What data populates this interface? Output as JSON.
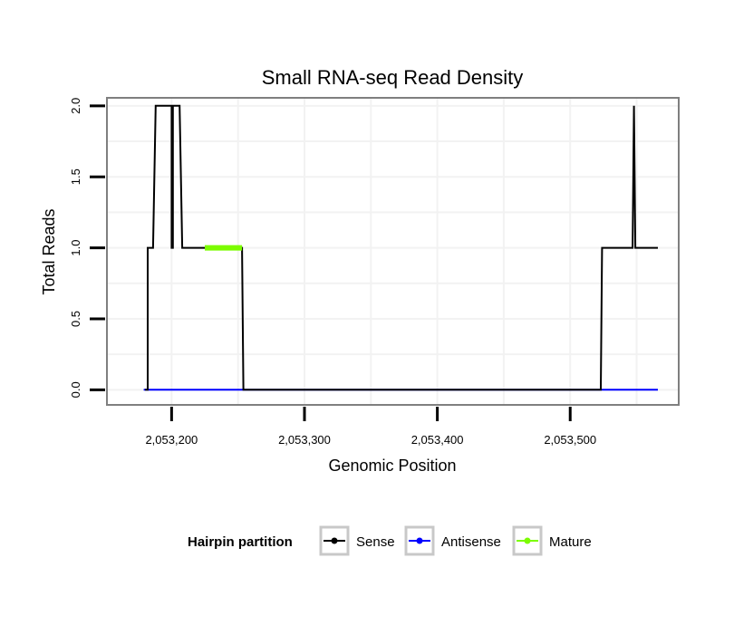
{
  "chart_data": {
    "type": "line",
    "title": "Small RNA-seq Read Density",
    "xlabel": "Genomic Position",
    "ylabel": "Total Reads",
    "xlim": [
      2053152,
      2053581
    ],
    "ylim": [
      -0.1,
      2.05
    ],
    "x_ticks": [
      2053200,
      2053300,
      2053400,
      2053500
    ],
    "x_tick_labels": [
      "2,053,200",
      "2,053,300",
      "2,053,400",
      "2,053,500"
    ],
    "y_ticks": [
      0.0,
      0.5,
      1.0,
      1.5,
      2.0
    ],
    "y_tick_labels": [
      "0.0",
      "0.5",
      "1.0",
      "1.5",
      "2.0"
    ],
    "series": [
      {
        "name": "Sense",
        "color": "#000000",
        "points": [
          [
            2053180,
            0
          ],
          [
            2053182,
            0
          ],
          [
            2053182,
            1
          ],
          [
            2053186,
            1
          ],
          [
            2053188,
            2
          ],
          [
            2053200,
            2
          ],
          [
            2053200,
            1
          ],
          [
            2053201,
            1
          ],
          [
            2053201,
            2
          ],
          [
            2053206,
            2
          ],
          [
            2053208,
            1
          ],
          [
            2053253,
            1
          ],
          [
            2053254,
            0
          ],
          [
            2053523,
            0
          ],
          [
            2053524,
            1
          ],
          [
            2053547,
            1
          ],
          [
            2053548,
            2
          ],
          [
            2053549,
            1
          ],
          [
            2053566,
            1
          ]
        ]
      },
      {
        "name": "Antisense",
        "color": "#0000ff",
        "points": [
          [
            2053179,
            0
          ],
          [
            2053566,
            0
          ]
        ]
      },
      {
        "name": "Mature",
        "color": "#7cfc00",
        "points": [
          [
            2053225,
            1
          ],
          [
            2053253,
            1
          ]
        ]
      }
    ],
    "legend": {
      "title": "Hairpin partition",
      "position": "bottom",
      "items": [
        {
          "label": "Sense",
          "color": "#000000"
        },
        {
          "label": "Antisense",
          "color": "#0000ff"
        },
        {
          "label": "Mature",
          "color": "#7cfc00"
        }
      ]
    },
    "grid": true
  }
}
